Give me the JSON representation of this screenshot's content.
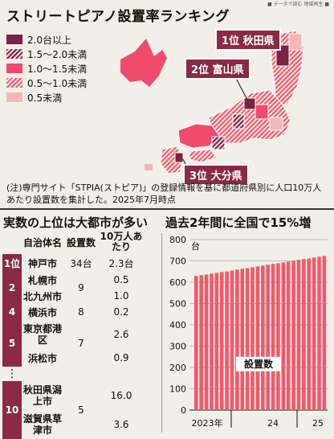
{
  "header": {
    "tag": "■ データで読む 地域再生 ■"
  },
  "title": "ストリートピアノ設置率ランキング",
  "legend": [
    {
      "label": "2.0台以上",
      "color": "#7a2344",
      "pattern": "solid"
    },
    {
      "label": "1.5〜2.0未満",
      "color": "#7a2344",
      "pattern": "hatch"
    },
    {
      "label": "1.0〜1.5未満",
      "color": "#ef4b6c",
      "pattern": "solid"
    },
    {
      "label": "0.5〜1.0未満",
      "color": "#ef5a6a",
      "pattern": "hatch"
    },
    {
      "label": "0.5未満",
      "color": "#f4b6b8",
      "pattern": "solid"
    }
  ],
  "callouts": {
    "first": "1位 秋田県",
    "second": "2位 富山県",
    "third": "3位 大分県"
  },
  "note": "(注)専門サイト「STPIA(ストピア)」の登録情報を基に都道府県別に人口10万人あたり設置数を集計した。2025年7月時点",
  "left_section": {
    "title": "実数の上位は大都市が多い",
    "headers": {
      "name": "自治体名",
      "count": "設置数",
      "per": "10万人あたり"
    },
    "rows": [
      {
        "rank": "1位",
        "name": "神戸市",
        "count": "34台",
        "per": "2.3台"
      },
      {
        "rank": "2",
        "name": "札幌市",
        "count": "9",
        "per": "0.5"
      },
      {
        "rank": "",
        "name": "北九州市",
        "count": "",
        "per": "1.0"
      },
      {
        "rank": "4",
        "name": "横浜市",
        "count": "8",
        "per": "0.2"
      },
      {
        "rank": "5",
        "name": "東京都港区",
        "count": "7",
        "per": "2.6"
      },
      {
        "rank": "",
        "name": "浜松市",
        "count": "",
        "per": "0.9"
      },
      {
        "rank": "10",
        "name": "秋田県潟上市",
        "count": "5",
        "per": "16.0"
      },
      {
        "rank": "",
        "name": "滋賀県草津市",
        "count": "",
        "per": "3.6"
      }
    ]
  },
  "chart_data": {
    "type": "bar",
    "title": "過去2年間に全国で15%増",
    "ylabel": "台",
    "ylim": [
      0,
      800
    ],
    "yticks": [
      0,
      100,
      200,
      300,
      400,
      500,
      600,
      700,
      800
    ],
    "xlabels": [
      "2023年",
      "24",
      "25"
    ],
    "annotation": "設置数",
    "values": [
      629,
      633,
      636,
      640,
      644,
      648,
      651,
      655,
      659,
      663,
      666,
      670,
      674,
      678,
      682,
      686,
      689,
      693,
      697,
      701,
      705,
      709,
      712,
      716,
      720,
      723
    ],
    "bar_color": "#ef5a6a"
  }
}
